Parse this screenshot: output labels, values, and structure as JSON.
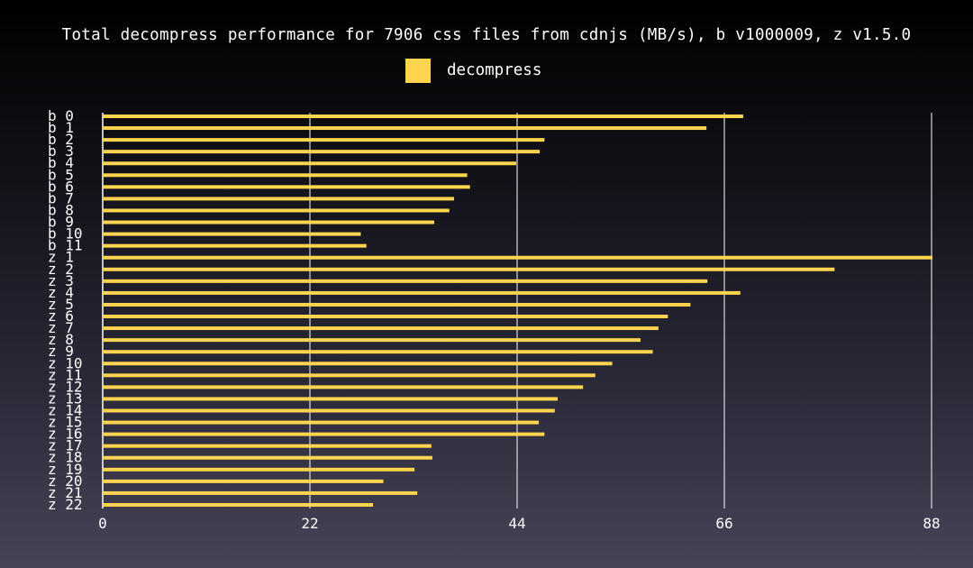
{
  "chart_data": {
    "type": "bar",
    "orientation": "horizontal",
    "title": "Total decompress performance for 7906 css files from cdnjs (MB/s), b v1000009, z v1.5.0",
    "xlabel": "",
    "ylabel": "",
    "xlim": [
      0,
      88
    ],
    "xticks": [
      "0",
      "22",
      "44",
      "66",
      "88"
    ],
    "grid": true,
    "legend_position": "top",
    "colors": {
      "bar": "#ffd54f",
      "grid": "#ffffff",
      "text": "#ffffff"
    },
    "categories": [
      "b  0",
      "b  1",
      "b  2",
      "b  3",
      "b  4",
      "b  5",
      "b  6",
      "b  7",
      "b  8",
      "b  9",
      "b 10",
      "b 11",
      "z  1",
      "z  2",
      "z  3",
      "z  4",
      "z  5",
      "z  6",
      "z  7",
      "z  8",
      "z  9",
      "z 10",
      "z 11",
      "z 12",
      "z 13",
      "z 14",
      "z 15",
      "z 16",
      "z 17",
      "z 18",
      "z 19",
      "z 20",
      "z 21",
      "z 22"
    ],
    "series": [
      {
        "name": "decompress",
        "values": [
          68.0,
          64.1,
          46.9,
          46.4,
          43.9,
          38.7,
          39.0,
          37.3,
          36.8,
          35.2,
          27.4,
          28.0,
          88.1,
          77.7,
          64.2,
          67.7,
          62.4,
          60.0,
          59.0,
          57.1,
          58.4,
          54.1,
          52.3,
          51.0,
          48.3,
          48.0,
          46.3,
          46.9,
          34.9,
          35.0,
          33.1,
          29.8,
          33.4,
          28.7
        ]
      }
    ]
  }
}
